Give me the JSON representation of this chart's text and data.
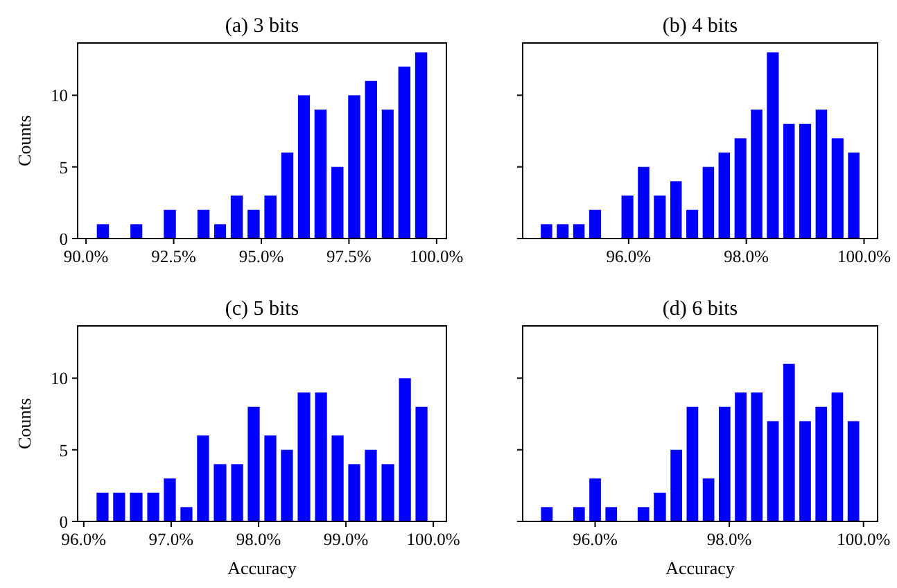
{
  "chart_data": [
    {
      "type": "histogram",
      "title": "(a) 3 bits",
      "ylabel": "Counts",
      "color": "#0000ff",
      "bins": [
        90.24,
        90.72,
        91.2,
        91.67,
        92.15,
        92.63,
        93.11,
        93.59,
        94.06,
        94.54,
        95.02,
        95.5,
        95.98,
        96.45,
        96.93,
        97.41,
        97.89,
        98.37,
        98.84,
        99.32,
        99.8
      ],
      "values": [
        1,
        0,
        1,
        0,
        2,
        0,
        2,
        1,
        3,
        2,
        3,
        6,
        10,
        9,
        5,
        10,
        11,
        9,
        12,
        13
      ],
      "xlim": [
        89.76,
        100.28
      ],
      "xticks": [
        {
          "value": 90,
          "label": "90.0%"
        },
        {
          "value": 92.5,
          "label": "92.5%"
        },
        {
          "value": 95,
          "label": "95.0%"
        },
        {
          "value": 97.5,
          "label": "97.5%"
        },
        {
          "value": 100,
          "label": "100.0%"
        }
      ],
      "ylim": [
        0,
        13.65
      ],
      "yticks": [
        0,
        5,
        10
      ]
    },
    {
      "type": "histogram",
      "title": "(b) 4 bits",
      "color": "#0000ff",
      "bins": [
        94.47,
        94.74,
        95.02,
        95.29,
        95.57,
        95.84,
        96.12,
        96.39,
        96.67,
        96.94,
        97.22,
        97.49,
        97.76,
        98.04,
        98.31,
        98.59,
        98.86,
        99.14,
        99.41,
        99.69,
        99.96
      ],
      "values": [
        1,
        1,
        1,
        2,
        0,
        3,
        5,
        3,
        4,
        2,
        5,
        6,
        7,
        9,
        13,
        8,
        8,
        9,
        7,
        6
      ],
      "xlim": [
        94.2,
        100.23
      ],
      "xticks": [
        {
          "value": 96,
          "label": "96.0%"
        },
        {
          "value": 98,
          "label": "98.0%"
        },
        {
          "value": 100,
          "label": "100.0%"
        }
      ],
      "ylim": [
        0,
        13.65
      ],
      "yticks": [
        0,
        5,
        10
      ],
      "tick_labels": "x"
    },
    {
      "type": "histogram",
      "title": "(c) 5 bits",
      "xlabel": "Accuracy",
      "ylabel": "Counts",
      "color": "#0000ff",
      "bins": [
        96.12,
        96.31,
        96.5,
        96.7,
        96.89,
        97.08,
        97.27,
        97.46,
        97.66,
        97.85,
        98.04,
        98.23,
        98.42,
        98.62,
        98.81,
        99.0,
        99.19,
        99.38,
        99.58,
        99.77,
        99.96
      ],
      "values": [
        2,
        2,
        2,
        2,
        3,
        1,
        6,
        4,
        4,
        8,
        6,
        5,
        9,
        9,
        6,
        4,
        5,
        4,
        10,
        8
      ],
      "xlim": [
        95.93,
        100.15
      ],
      "xticks": [
        {
          "value": 96,
          "label": "96.0%"
        },
        {
          "value": 97,
          "label": "97.0%"
        },
        {
          "value": 98,
          "label": "98.0%"
        },
        {
          "value": 99,
          "label": "99.0%"
        },
        {
          "value": 100,
          "label": "100.0%"
        }
      ],
      "ylim": [
        0,
        13.65
      ],
      "yticks": [
        0,
        5,
        10
      ]
    },
    {
      "type": "histogram",
      "title": "(d) 6 bits",
      "xlabel": "Accuracy",
      "color": "#0000ff",
      "bins": [
        95.16,
        95.4,
        95.64,
        95.88,
        96.12,
        96.36,
        96.6,
        96.84,
        97.09,
        97.33,
        97.57,
        97.81,
        98.05,
        98.29,
        98.53,
        98.77,
        99.01,
        99.25,
        99.49,
        99.73,
        99.97
      ],
      "values": [
        1,
        0,
        1,
        3,
        1,
        0,
        1,
        2,
        5,
        8,
        3,
        8,
        9,
        9,
        7,
        11,
        7,
        8,
        9,
        7
      ],
      "xlim": [
        94.92,
        100.21
      ],
      "xticks": [
        {
          "value": 96,
          "label": "96.0%"
        },
        {
          "value": 98,
          "label": "98.0%"
        },
        {
          "value": 100,
          "label": "100.0%"
        }
      ],
      "ylim": [
        0,
        13.65
      ],
      "yticks": [
        0,
        5,
        10
      ],
      "tick_labels": "x"
    }
  ]
}
